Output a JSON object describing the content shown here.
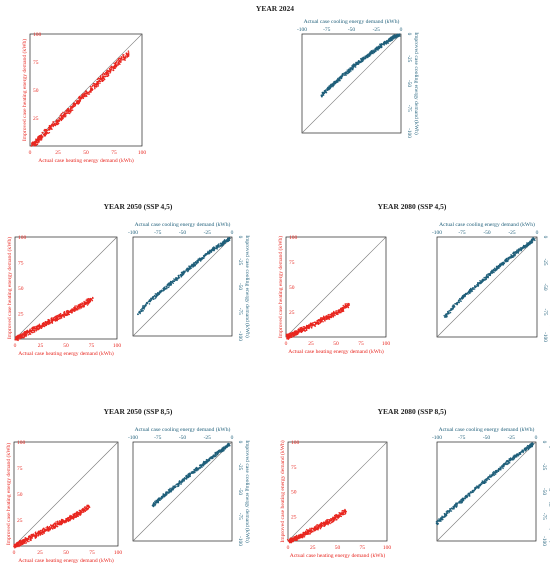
{
  "colors": {
    "heating": "#e8261f",
    "cooling": "#1f5f7a",
    "frame": "#222222",
    "diagonal": "#777777"
  },
  "heating_axis_labels": {
    "x": "Actual case heating energy demand (kWh)",
    "y": "Improved case heating energy demand (kWh)"
  },
  "cooling_axis_labels": {
    "x": "Actual case cooling energy demand (kWh)",
    "y": "Improved case cooling energy demand (kWh)"
  },
  "panel_titles": [
    "YEAR 2024",
    "YEAR 2050 (SSP 4,5)",
    "YEAR 2080 (SSP 4,5)",
    "YEAR 2050 (SSP 8,5)",
    "YEAR 2080 (SSP 8,5)"
  ],
  "chart_data": [
    {
      "type": "scatter",
      "title": "YEAR 2024",
      "series_kind": "heating",
      "xlabel": "Actual case heating energy demand (kWh)",
      "ylabel": "Improved case heating energy demand (kWh)",
      "xlim": [
        0,
        100
      ],
      "ylim": [
        0,
        100
      ],
      "xticks": [
        "0",
        "25",
        "50",
        "75",
        "100"
      ],
      "yticks": [
        "0",
        "25",
        "50",
        "75",
        "100"
      ],
      "reference_line": "y = x",
      "grid": false,
      "x": [
        2,
        5,
        8,
        10,
        14,
        18,
        22,
        26,
        30,
        34,
        38,
        42,
        46,
        50,
        55,
        60,
        64,
        68,
        72,
        76,
        80,
        84,
        88
      ],
      "y": [
        1,
        3,
        6,
        8,
        12,
        16,
        20,
        23,
        27,
        31,
        35,
        39,
        43,
        47,
        51,
        56,
        60,
        64,
        68,
        72,
        76,
        79,
        83
      ]
    },
    {
      "type": "scatter",
      "title": "YEAR 2024",
      "series_kind": "cooling",
      "xlabel": "Actual case cooling energy demand (kWh)",
      "ylabel": "Improved case cooling energy demand (kWh)",
      "xlim": [
        -100,
        0
      ],
      "ylim": [
        -100,
        0
      ],
      "xticks": [
        "-100",
        "-75",
        "-50",
        "-25",
        "0"
      ],
      "yticks": [
        "-100",
        "-75",
        "-50",
        "-25",
        "0"
      ],
      "reference_line": "y = x",
      "grid": false,
      "x": [
        -80,
        -76,
        -72,
        -68,
        -64,
        -60,
        -55,
        -50,
        -46,
        -42,
        -38,
        -34,
        -30,
        -26,
        -22,
        -18,
        -14,
        -10,
        -7,
        -4,
        -2
      ],
      "y": [
        -62,
        -58,
        -54,
        -50,
        -47,
        -43,
        -39,
        -35,
        -31,
        -28,
        -25,
        -22,
        -19,
        -16,
        -13,
        -10,
        -8,
        -5,
        -3,
        -2,
        -1
      ]
    },
    {
      "type": "scatter",
      "title": "YEAR 2050 (SSP 4,5)",
      "series_kind": "heating",
      "xlabel": "Actual case heating energy demand (kWh)",
      "ylabel": "Improved case heating energy demand (kWh)",
      "xlim": [
        0,
        100
      ],
      "ylim": [
        0,
        100
      ],
      "xticks": [
        "0",
        "25",
        "50",
        "75",
        "100"
      ],
      "yticks": [
        "0",
        "25",
        "50",
        "75",
        "100"
      ],
      "reference_line": "y = x",
      "grid": false,
      "x": [
        1,
        3,
        6,
        9,
        12,
        16,
        20,
        24,
        28,
        32,
        36,
        40,
        44,
        48,
        52,
        56,
        60,
        64,
        68,
        72,
        75
      ],
      "y": [
        0,
        1,
        3,
        4,
        6,
        8,
        10,
        12,
        14,
        16,
        18,
        20,
        22,
        24,
        26,
        28,
        30,
        32,
        34,
        37,
        39
      ]
    },
    {
      "type": "scatter",
      "title": "YEAR 2050 (SSP 4,5)",
      "series_kind": "cooling",
      "xlabel": "Actual case cooling energy demand (kWh)",
      "ylabel": "Improved case cooling energy demand (kWh)",
      "xlim": [
        -100,
        0
      ],
      "ylim": [
        -100,
        0
      ],
      "xticks": [
        "-100",
        "-75",
        "-50",
        "-25",
        "0"
      ],
      "yticks": [
        "-100",
        "-75",
        "-50",
        "-25",
        "0"
      ],
      "reference_line": "y = x",
      "grid": false,
      "x": [
        -95,
        -88,
        -80,
        -74,
        -68,
        -62,
        -56,
        -50,
        -45,
        -40,
        -35,
        -30,
        -25,
        -20,
        -15,
        -10,
        -6,
        -3
      ],
      "y": [
        -78,
        -70,
        -62,
        -57,
        -52,
        -47,
        -42,
        -37,
        -33,
        -29,
        -25,
        -21,
        -17,
        -13,
        -10,
        -7,
        -4,
        -2
      ]
    },
    {
      "type": "scatter",
      "title": "YEAR 2080 (SSP 4,5)",
      "series_kind": "heating",
      "xlabel": "Actual case heating energy demand (kWh)",
      "ylabel": "Improved case heating energy demand (kWh)",
      "xlim": [
        0,
        100
      ],
      "ylim": [
        0,
        100
      ],
      "xticks": [
        "0",
        "25",
        "50",
        "75",
        "100"
      ],
      "yticks": [
        "0",
        "25",
        "50",
        "75",
        "100"
      ],
      "reference_line": "y = x",
      "grid": false,
      "x": [
        1,
        3,
        6,
        9,
        12,
        15,
        18,
        22,
        26,
        30,
        34,
        38,
        42,
        46,
        50,
        54,
        58,
        62
      ],
      "y": [
        0,
        1,
        2,
        4,
        5,
        7,
        8,
        10,
        12,
        14,
        16,
        18,
        20,
        22,
        24,
        26,
        29,
        32
      ]
    },
    {
      "type": "scatter",
      "title": "YEAR 2080 (SSP 4,5)",
      "series_kind": "cooling",
      "xlabel": "Actual case cooling energy demand (kWh)",
      "ylabel": "Improved case cooling energy demand (kWh)",
      "xlim": [
        -100,
        0
      ],
      "ylim": [
        -100,
        0
      ],
      "xticks": [
        "-100",
        "-75",
        "-50",
        "-25",
        "0"
      ],
      "yticks": [
        "-100",
        "-75",
        "-50",
        "-25",
        "0"
      ],
      "reference_line": "y = x",
      "grid": false,
      "x": [
        -92,
        -86,
        -80,
        -74,
        -68,
        -62,
        -56,
        -50,
        -45,
        -40,
        -35,
        -30,
        -25,
        -20,
        -15,
        -10,
        -6,
        -3
      ],
      "y": [
        -80,
        -73,
        -66,
        -60,
        -55,
        -50,
        -45,
        -40,
        -35,
        -31,
        -27,
        -23,
        -19,
        -15,
        -11,
        -8,
        -5,
        -2
      ]
    },
    {
      "type": "scatter",
      "title": "YEAR 2050 (SSP 8,5)",
      "series_kind": "heating",
      "xlabel": "Actual case heating energy demand (kWh)",
      "ylabel": "Improved case heating energy demand (kWh)",
      "xlim": [
        0,
        100
      ],
      "ylim": [
        0,
        100
      ],
      "xticks": [
        "0",
        "25",
        "50",
        "75",
        "100"
      ],
      "yticks": [
        "0",
        "25",
        "50",
        "75",
        "100"
      ],
      "reference_line": "y = x",
      "grid": false,
      "x": [
        1,
        3,
        6,
        9,
        12,
        16,
        20,
        24,
        28,
        32,
        36,
        40,
        44,
        48,
        52,
        56,
        60,
        64,
        68,
        72
      ],
      "y": [
        0,
        1,
        3,
        4,
        6,
        8,
        10,
        12,
        14,
        16,
        18,
        20,
        22,
        24,
        26,
        28,
        30,
        32,
        35,
        38
      ]
    },
    {
      "type": "scatter",
      "title": "YEAR 2050 (SSP 8,5)",
      "series_kind": "cooling",
      "xlabel": "Actual case cooling energy demand (kWh)",
      "ylabel": "Improved case cooling energy demand (kWh)",
      "xlim": [
        -100,
        0
      ],
      "ylim": [
        -100,
        0
      ],
      "xticks": [
        "-100",
        "-75",
        "-50",
        "-25",
        "0"
      ],
      "yticks": [
        "-100",
        "-75",
        "-50",
        "-25",
        "0"
      ],
      "reference_line": "y = x",
      "grid": false,
      "x": [
        -80,
        -75,
        -70,
        -65,
        -60,
        -55,
        -50,
        -45,
        -40,
        -35,
        -30,
        -25,
        -20,
        -15,
        -10,
        -6,
        -3
      ],
      "y": [
        -64,
        -60,
        -55,
        -51,
        -47,
        -43,
        -39,
        -35,
        -31,
        -27,
        -23,
        -19,
        -15,
        -11,
        -8,
        -5,
        -2
      ]
    },
    {
      "type": "scatter",
      "title": "YEAR 2080 (SSP 8,5)",
      "series_kind": "heating",
      "xlabel": "Actual case heating energy demand (kWh)",
      "ylabel": "Improved case heating energy demand (kWh)",
      "xlim": [
        0,
        100
      ],
      "ylim": [
        0,
        100
      ],
      "xticks": [
        "0",
        "25",
        "50",
        "75",
        "100"
      ],
      "yticks": [
        "0",
        "25",
        "50",
        "75",
        "100"
      ],
      "reference_line": "y = x",
      "grid": false,
      "x": [
        1,
        3,
        6,
        9,
        12,
        15,
        18,
        22,
        26,
        30,
        34,
        38,
        42,
        46,
        50,
        54,
        58
      ],
      "y": [
        0,
        1,
        2,
        3,
        5,
        6,
        8,
        10,
        12,
        14,
        16,
        18,
        20,
        22,
        25,
        27,
        30
      ]
    },
    {
      "type": "scatter",
      "title": "YEAR 2080 (SSP 8,5)",
      "series_kind": "cooling",
      "xlabel": "Actual case cooling energy demand (kWh)",
      "ylabel": "Improved case cooling energy demand (kWh)",
      "xlim": [
        -100,
        0
      ],
      "ylim": [
        -100,
        0
      ],
      "xticks": [
        "-100",
        "-75",
        "-50",
        "-25",
        "0"
      ],
      "yticks": [
        "-100",
        "-75",
        "-50",
        "-25",
        "0"
      ],
      "reference_line": "y = x",
      "grid": false,
      "x": [
        -100,
        -94,
        -88,
        -82,
        -76,
        -70,
        -64,
        -58,
        -52,
        -46,
        -40,
        -34,
        -28,
        -22,
        -16,
        -10,
        -6,
        -3
      ],
      "y": [
        -82,
        -76,
        -70,
        -65,
        -60,
        -55,
        -50,
        -45,
        -40,
        -35,
        -30,
        -25,
        -20,
        -15,
        -11,
        -7,
        -4,
        -2
      ]
    }
  ]
}
